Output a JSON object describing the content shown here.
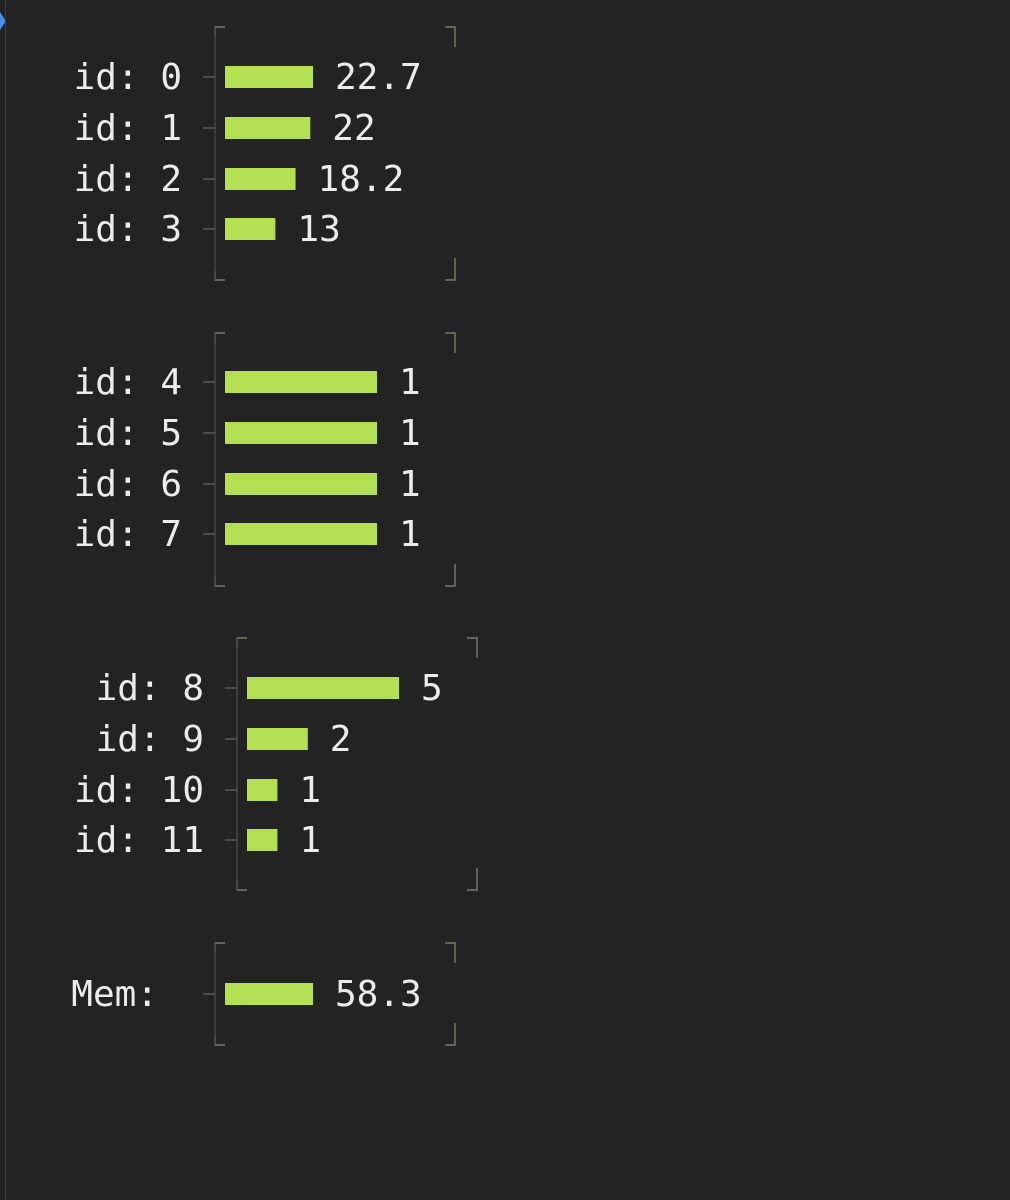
{
  "colors": {
    "background": "#232323",
    "bar": "#b2e052",
    "text": "#ececec",
    "frame": "#8a8a7a",
    "caret": "#4a8fe8"
  },
  "chart_data": [
    {
      "type": "bar",
      "orientation": "horizontal",
      "categories": [
        "id: 0",
        "id: 1",
        "id: 2",
        "id: 3"
      ],
      "values": [
        22.7,
        22,
        18.2,
        13
      ],
      "labels": [
        "22.7",
        "22",
        "18.2",
        "13"
      ]
    },
    {
      "type": "bar",
      "orientation": "horizontal",
      "categories": [
        "id: 4",
        "id: 5",
        "id: 6",
        "id: 7"
      ],
      "values": [
        1,
        1,
        1,
        1
      ],
      "labels": [
        "1",
        "1",
        "1",
        "1"
      ]
    },
    {
      "type": "bar",
      "orientation": "horizontal",
      "categories": [
        "id: 8",
        "id: 9",
        "id: 10",
        "id: 11"
      ],
      "values": [
        5,
        2,
        1,
        1
      ],
      "labels": [
        "5",
        "2",
        "1",
        "1"
      ]
    },
    {
      "type": "bar",
      "orientation": "horizontal",
      "categories": [
        "Mem:"
      ],
      "values": [
        58.3
      ],
      "labels": [
        "58.3"
      ]
    }
  ]
}
